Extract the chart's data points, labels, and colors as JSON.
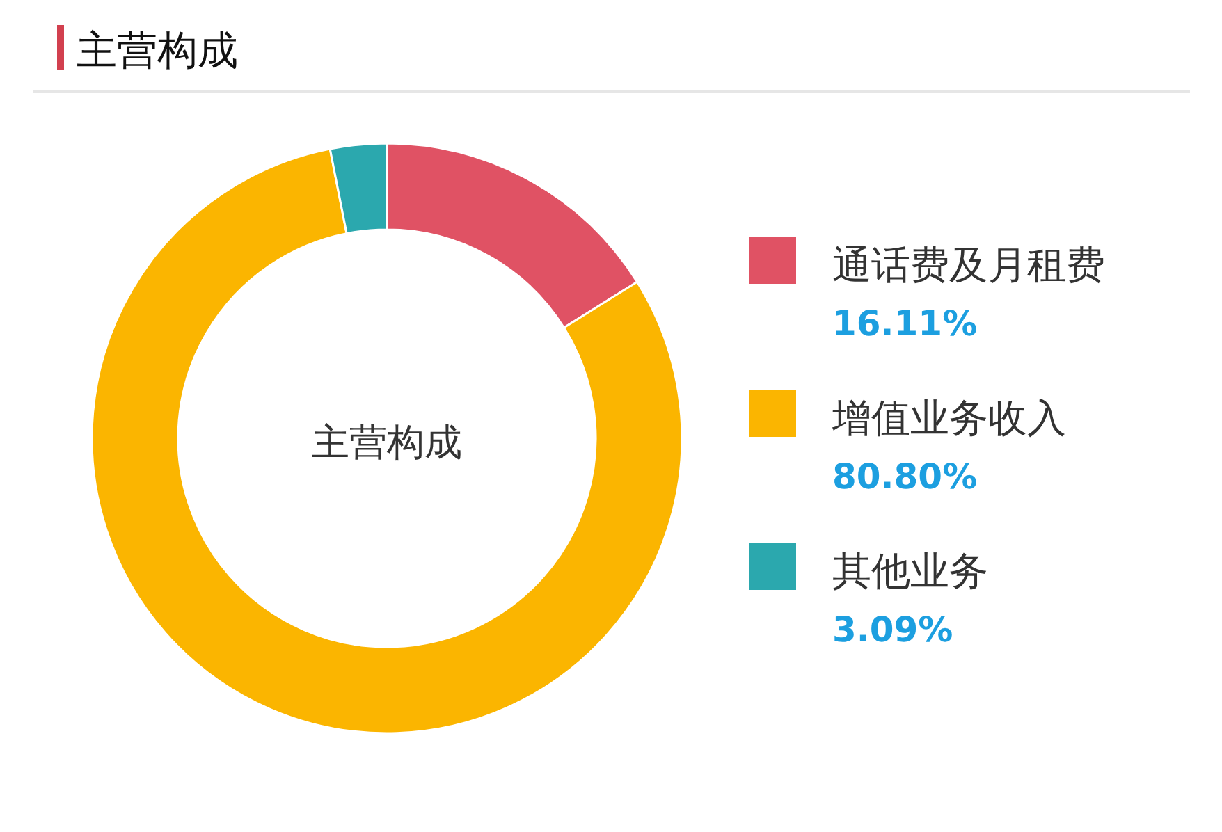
{
  "chart_data": {
    "type": "donut",
    "title": "主营构成",
    "categories": [
      "通话费及月租费",
      "增值业务收入",
      "其他业务"
    ],
    "values": [
      16.11,
      80.8,
      3.09
    ],
    "colors": [
      "#e05264",
      "#fbb500",
      "#2ba8ae"
    ],
    "value_labels": [
      "16.11%",
      "80.80%",
      "3.09%"
    ],
    "annotations": [
      "主营构成"
    ],
    "legend": "right"
  }
}
